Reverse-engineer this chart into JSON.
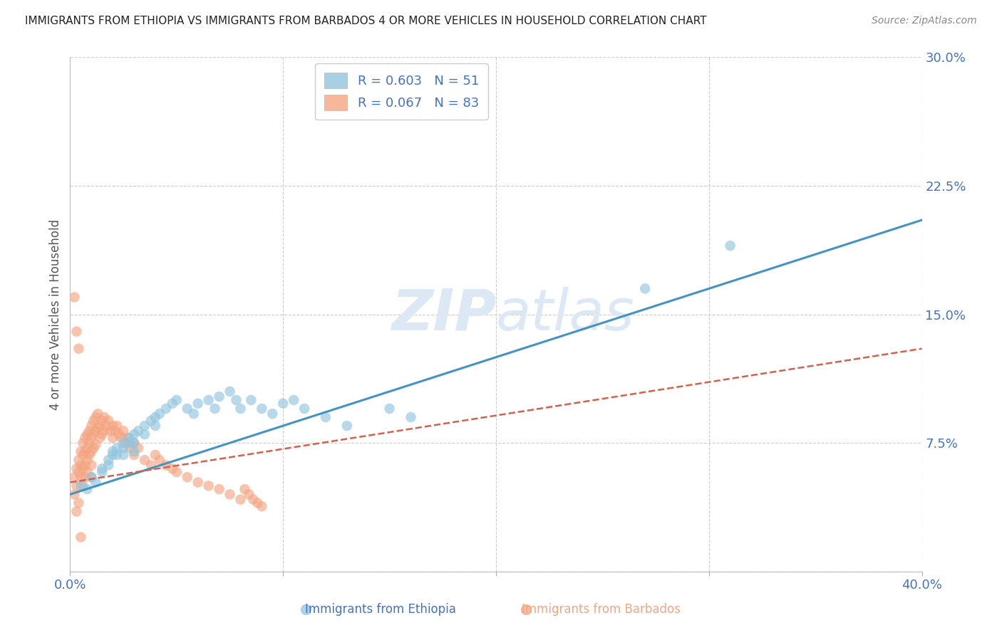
{
  "title": "IMMIGRANTS FROM ETHIOPIA VS IMMIGRANTS FROM BARBADOS 4 OR MORE VEHICLES IN HOUSEHOLD CORRELATION CHART",
  "source": "Source: ZipAtlas.com",
  "ylabel": "4 or more Vehicles in Household",
  "x_label_ethiopia": "Immigrants from Ethiopia",
  "x_label_barbados": "Immigrants from Barbados",
  "xlim": [
    0.0,
    0.4
  ],
  "ylim": [
    0.0,
    0.3
  ],
  "yticks": [
    0.0,
    0.075,
    0.15,
    0.225,
    0.3
  ],
  "xticks": [
    0.0,
    0.1,
    0.2,
    0.3,
    0.4
  ],
  "ytick_labels": [
    "",
    "7.5%",
    "15.0%",
    "22.5%",
    "30.0%"
  ],
  "xtick_labels": [
    "0.0%",
    "",
    "",
    "",
    "40.0%"
  ],
  "legend_ethiopia_R": "R = 0.603",
  "legend_ethiopia_N": "N = 51",
  "legend_barbados_R": "R = 0.067",
  "legend_barbados_N": "N = 83",
  "color_ethiopia": "#92c5de",
  "color_barbados": "#f4a582",
  "color_trend_ethiopia": "#4393c3",
  "color_trend_barbados": "#d6604d",
  "tick_label_color": "#4472c4",
  "watermark_color": "#dce9f5",
  "ethiopia_trend_x0": 0.0,
  "ethiopia_trend_y0": 0.045,
  "ethiopia_trend_x1": 0.4,
  "ethiopia_trend_y1": 0.205,
  "barbados_trend_x0": 0.0,
  "barbados_trend_y0": 0.052,
  "barbados_trend_x1": 0.4,
  "barbados_trend_y1": 0.13,
  "ethiopia_x": [
    0.005,
    0.008,
    0.01,
    0.012,
    0.015,
    0.015,
    0.018,
    0.018,
    0.02,
    0.02,
    0.022,
    0.022,
    0.025,
    0.025,
    0.025,
    0.028,
    0.028,
    0.03,
    0.03,
    0.03,
    0.032,
    0.035,
    0.035,
    0.038,
    0.04,
    0.04,
    0.042,
    0.045,
    0.048,
    0.05,
    0.055,
    0.058,
    0.06,
    0.065,
    0.068,
    0.07,
    0.075,
    0.078,
    0.08,
    0.085,
    0.09,
    0.095,
    0.1,
    0.105,
    0.11,
    0.12,
    0.13,
    0.15,
    0.16,
    0.27,
    0.31
  ],
  "ethiopia_y": [
    0.05,
    0.048,
    0.055,
    0.052,
    0.06,
    0.058,
    0.065,
    0.062,
    0.07,
    0.068,
    0.072,
    0.068,
    0.075,
    0.072,
    0.068,
    0.078,
    0.075,
    0.08,
    0.075,
    0.07,
    0.082,
    0.085,
    0.08,
    0.088,
    0.09,
    0.085,
    0.092,
    0.095,
    0.098,
    0.1,
    0.095,
    0.092,
    0.098,
    0.1,
    0.095,
    0.102,
    0.105,
    0.1,
    0.095,
    0.1,
    0.095,
    0.092,
    0.098,
    0.1,
    0.095,
    0.09,
    0.085,
    0.095,
    0.09,
    0.165,
    0.19
  ],
  "barbados_x": [
    0.002,
    0.002,
    0.003,
    0.003,
    0.003,
    0.004,
    0.004,
    0.004,
    0.005,
    0.005,
    0.005,
    0.005,
    0.006,
    0.006,
    0.006,
    0.006,
    0.007,
    0.007,
    0.007,
    0.007,
    0.008,
    0.008,
    0.008,
    0.008,
    0.009,
    0.009,
    0.009,
    0.01,
    0.01,
    0.01,
    0.01,
    0.01,
    0.011,
    0.011,
    0.011,
    0.012,
    0.012,
    0.012,
    0.013,
    0.013,
    0.014,
    0.014,
    0.015,
    0.015,
    0.016,
    0.016,
    0.017,
    0.018,
    0.019,
    0.02,
    0.02,
    0.021,
    0.022,
    0.023,
    0.024,
    0.025,
    0.026,
    0.027,
    0.028,
    0.03,
    0.03,
    0.032,
    0.035,
    0.038,
    0.04,
    0.042,
    0.045,
    0.048,
    0.05,
    0.055,
    0.06,
    0.065,
    0.07,
    0.075,
    0.08,
    0.082,
    0.084,
    0.086,
    0.088,
    0.09,
    0.002,
    0.003,
    0.004
  ],
  "barbados_y": [
    0.055,
    0.045,
    0.06,
    0.05,
    0.035,
    0.065,
    0.058,
    0.04,
    0.07,
    0.062,
    0.055,
    0.02,
    0.075,
    0.068,
    0.06,
    0.05,
    0.078,
    0.07,
    0.062,
    0.055,
    0.08,
    0.072,
    0.065,
    0.058,
    0.082,
    0.075,
    0.068,
    0.085,
    0.078,
    0.07,
    0.062,
    0.055,
    0.088,
    0.08,
    0.072,
    0.09,
    0.082,
    0.074,
    0.092,
    0.084,
    0.085,
    0.078,
    0.088,
    0.08,
    0.09,
    0.082,
    0.085,
    0.088,
    0.082,
    0.085,
    0.078,
    0.082,
    0.085,
    0.08,
    0.078,
    0.082,
    0.075,
    0.078,
    0.072,
    0.075,
    0.068,
    0.072,
    0.065,
    0.062,
    0.068,
    0.065,
    0.062,
    0.06,
    0.058,
    0.055,
    0.052,
    0.05,
    0.048,
    0.045,
    0.042,
    0.048,
    0.045,
    0.042,
    0.04,
    0.038,
    0.16,
    0.14,
    0.13
  ]
}
